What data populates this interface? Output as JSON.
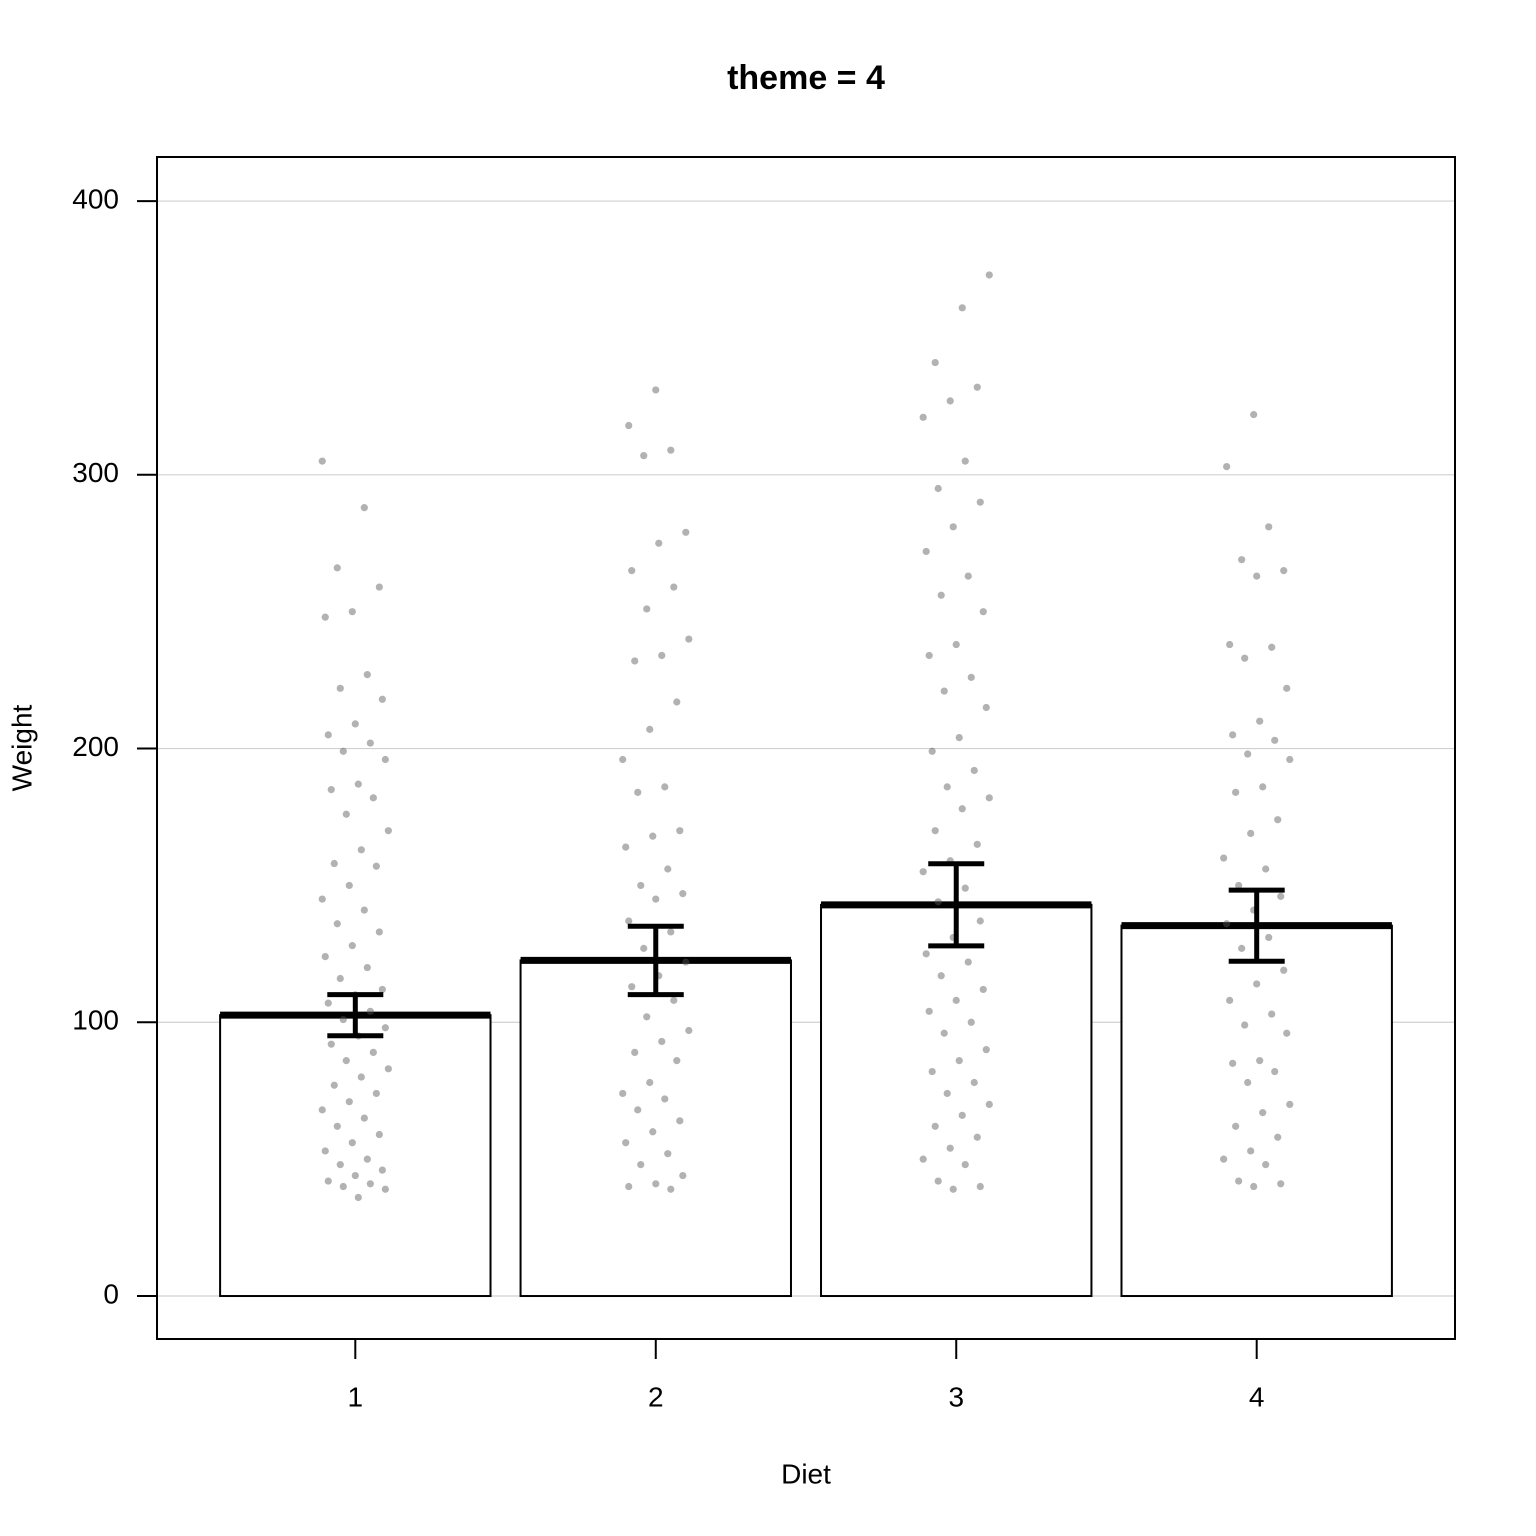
{
  "chart_data": {
    "type": "bar",
    "title": "theme = 4",
    "x_label": "Diet",
    "y_label": "Weight",
    "categories": [
      "1",
      "2",
      "3",
      "4"
    ],
    "values": [
      102.6,
      122.6,
      142.9,
      135.3
    ],
    "errors": [
      7.5,
      12.5,
      15,
      13
    ],
    "color": "#ffffff",
    "points_color": "#555555",
    "points": [
      [
        305,
        288,
        266,
        259,
        250,
        248,
        227,
        222,
        218,
        209,
        205,
        202,
        199,
        196,
        187,
        185,
        182,
        176,
        170,
        163,
        158,
        157,
        150,
        145,
        141,
        136,
        133,
        128,
        124,
        120,
        116,
        112,
        110,
        107,
        104,
        101,
        98,
        95,
        92,
        89,
        86,
        83,
        80,
        77,
        74,
        71,
        68,
        65,
        62,
        59,
        56,
        53,
        50,
        48,
        46,
        44,
        42,
        41,
        40,
        39,
        36
      ],
      [
        331,
        318,
        309,
        307,
        279,
        275,
        265,
        259,
        251,
        240,
        234,
        232,
        217,
        207,
        196,
        186,
        184,
        170,
        168,
        164,
        156,
        150,
        147,
        145,
        137,
        133,
        127,
        122,
        117,
        113,
        108,
        102,
        97,
        93,
        89,
        86,
        78,
        74,
        72,
        68,
        64,
        60,
        56,
        52,
        48,
        44,
        41,
        40,
        39
      ],
      [
        373,
        361,
        341,
        332,
        327,
        321,
        305,
        295,
        290,
        281,
        272,
        263,
        256,
        250,
        238,
        234,
        226,
        221,
        215,
        204,
        199,
        192,
        186,
        182,
        178,
        170,
        165,
        159,
        155,
        149,
        144,
        137,
        131,
        125,
        122,
        117,
        112,
        108,
        104,
        100,
        96,
        90,
        86,
        82,
        78,
        74,
        70,
        66,
        62,
        58,
        54,
        50,
        48,
        42,
        40,
        39
      ],
      [
        322,
        303,
        281,
        269,
        265,
        263,
        238,
        237,
        233,
        222,
        210,
        205,
        203,
        198,
        196,
        186,
        184,
        174,
        169,
        160,
        156,
        150,
        146,
        141,
        136,
        131,
        127,
        119,
        114,
        108,
        103,
        99,
        96,
        86,
        85,
        82,
        78,
        70,
        67,
        62,
        58,
        53,
        50,
        48,
        42,
        41,
        40
      ]
    ],
    "ylim": [
      -15.7,
      416.1
    ],
    "yticks": [
      0,
      100,
      200,
      300,
      400
    ],
    "grid": true
  }
}
